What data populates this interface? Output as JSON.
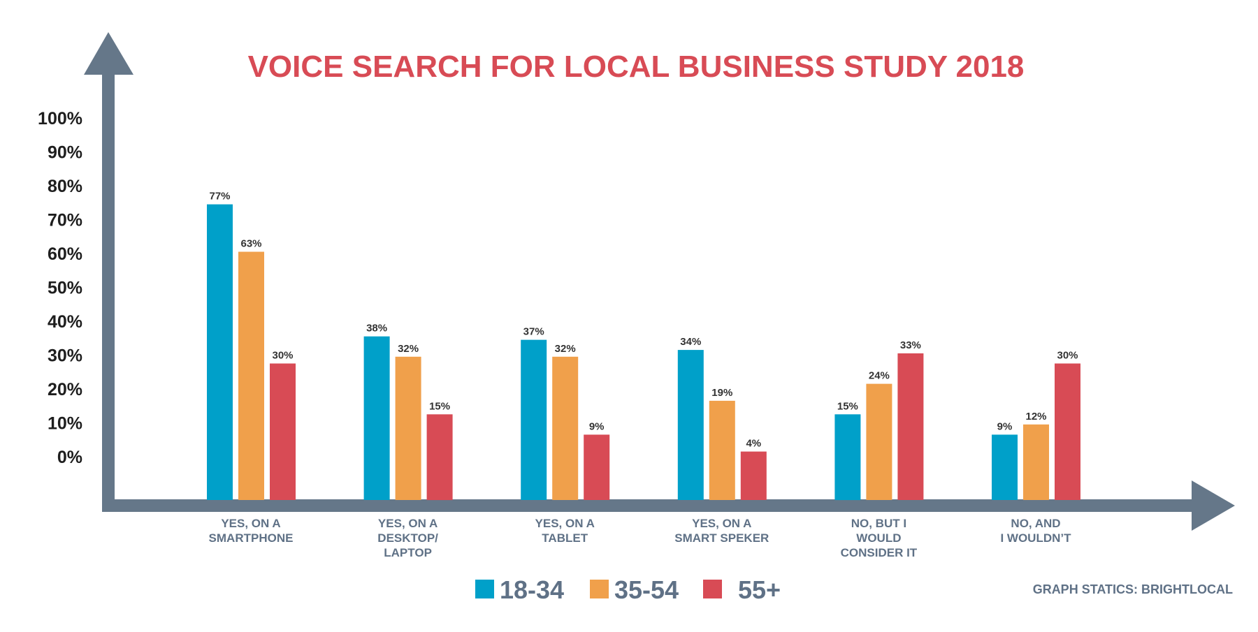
{
  "chart_data": {
    "type": "bar",
    "title": "VOICE SEARCH FOR LOCAL BUSINESS STUDY 2018",
    "categories": [
      [
        "YES, ON A",
        "SMARTPHONE"
      ],
      [
        "YES, ON A",
        "DESKTOP/",
        "LAPTOP"
      ],
      [
        "YES, ON A",
        "TABLET"
      ],
      [
        "YES, ON A",
        "SMART SPEKER"
      ],
      [
        "NO, BUT I",
        "WOULD",
        "CONSIDER IT"
      ],
      [
        "NO, AND",
        "I WOULDN’T"
      ]
    ],
    "series": [
      {
        "name": "18-34",
        "color": "#00a0c9",
        "values": [
          77,
          38,
          37,
          34,
          15,
          9
        ]
      },
      {
        "name": "35-54",
        "color": "#f0a04b",
        "values": [
          63,
          32,
          32,
          19,
          24,
          12
        ]
      },
      {
        "name": "55+",
        "color": "#d84b55",
        "values": [
          30,
          15,
          9,
          4,
          33,
          30
        ]
      }
    ],
    "value_labels": [
      [
        "77%",
        "38%",
        "37%",
        "34%",
        "15%",
        "9%"
      ],
      [
        "63%",
        "32%",
        "32%",
        "19%",
        "24%",
        "12%"
      ],
      [
        "30%",
        "15%",
        "9%",
        "4%",
        "33%",
        "30%"
      ]
    ],
    "yticks": [
      "100%",
      "90%",
      "80%",
      "70%",
      "60%",
      "50%",
      "40%",
      "30%",
      "20%",
      "10%",
      "0%"
    ],
    "ylim": [
      0,
      100
    ],
    "xlabel": "",
    "ylabel": "",
    "grid": false,
    "legend_position": "bottom-center",
    "source": "GRAPH STATICS: BRIGHTLOCAL",
    "colors": {
      "title": "#d84b55",
      "axis": "#657789",
      "tick_text": "#1e1e1e",
      "category_text": "#5f7186",
      "value_text": "#333333"
    }
  }
}
